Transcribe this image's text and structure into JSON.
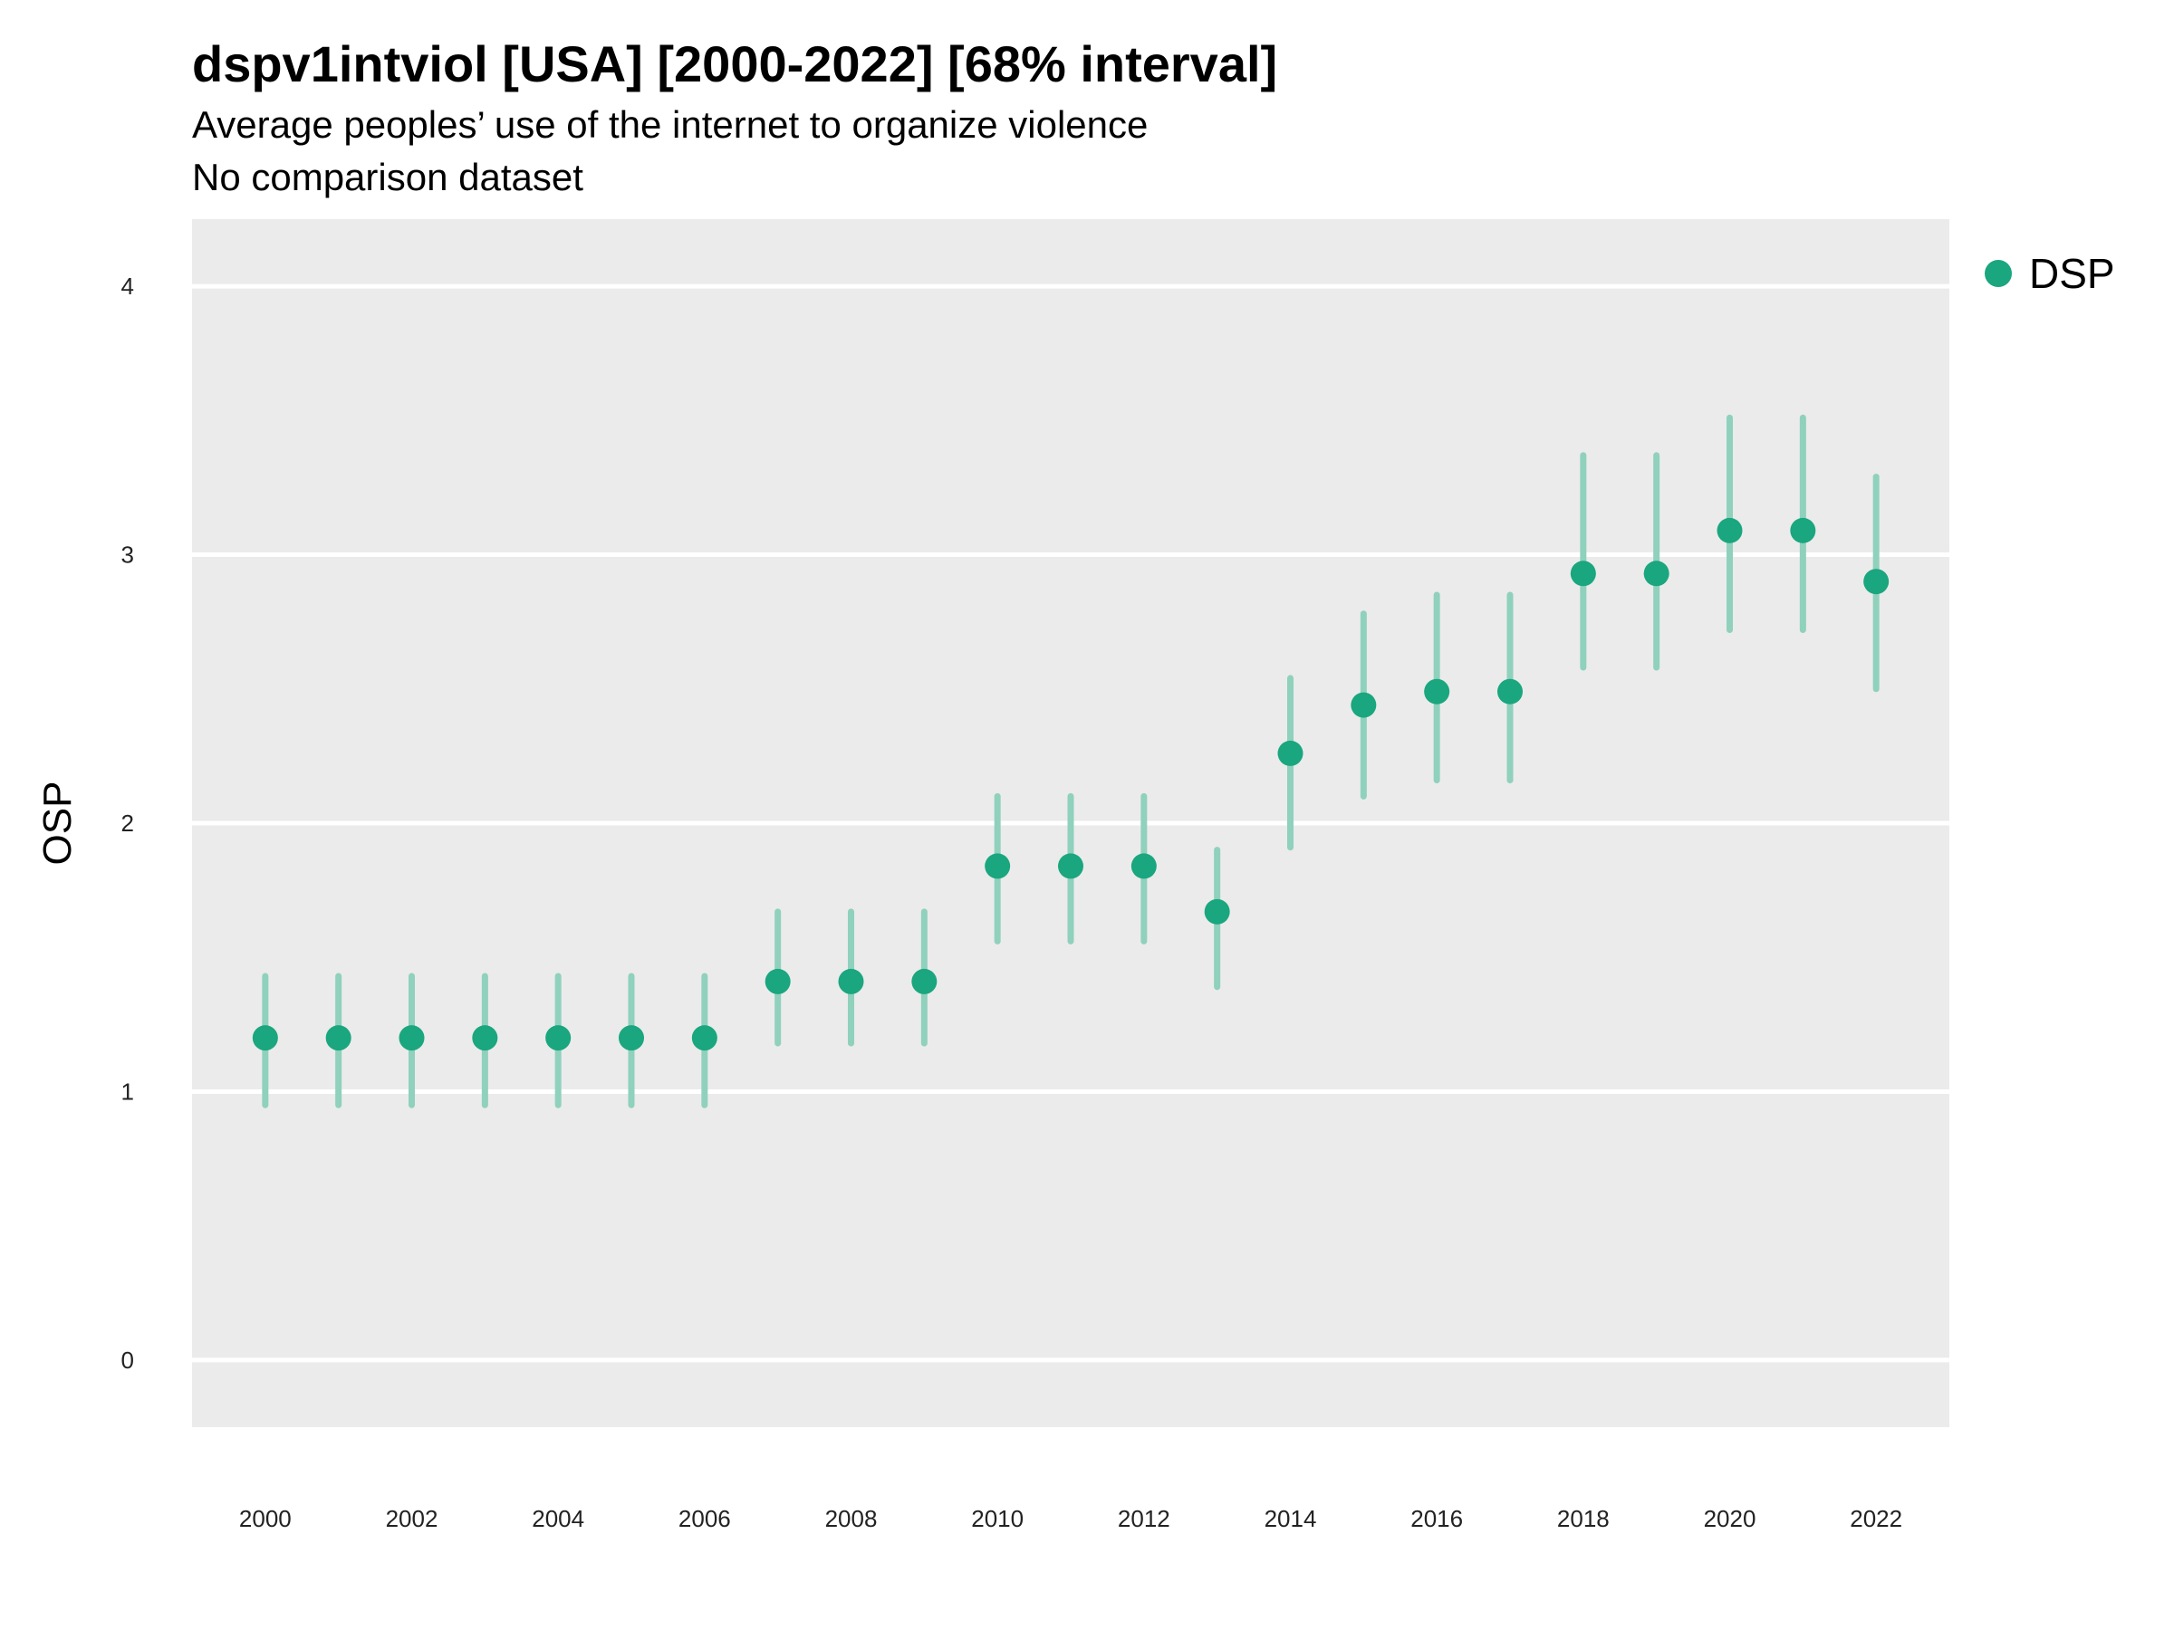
{
  "title": "dspv1intviol [USA] [2000-2022] [68% interval]",
  "subtitle": "Average peoples’ use of the internet to organize violence",
  "caption": "No comparison dataset",
  "colors": {
    "point": "#1aa67e",
    "interval": "#8fd1bc",
    "panel": "#ebebeb",
    "grid": "#ffffff"
  },
  "chart_data": {
    "type": "scatter",
    "ylabel": "OSP",
    "xlabel": "",
    "ylim": [
      -0.25,
      4.25
    ],
    "xlim": [
      1999,
      2023
    ],
    "yticks": [
      0,
      1,
      2,
      3,
      4
    ],
    "xticks": [
      2000,
      2002,
      2004,
      2006,
      2008,
      2010,
      2012,
      2014,
      2016,
      2018,
      2020,
      2022
    ],
    "grid": true,
    "legend_position": "right",
    "series": [
      {
        "name": "DSP",
        "x": [
          2000,
          2001,
          2002,
          2003,
          2004,
          2005,
          2006,
          2007,
          2008,
          2009,
          2010,
          2011,
          2012,
          2013,
          2014,
          2015,
          2016,
          2017,
          2018,
          2019,
          2020,
          2021,
          2022
        ],
        "y": [
          1.2,
          1.2,
          1.2,
          1.2,
          1.2,
          1.2,
          1.2,
          1.41,
          1.41,
          1.41,
          1.84,
          1.84,
          1.84,
          1.67,
          2.26,
          2.44,
          2.49,
          2.49,
          2.93,
          2.93,
          3.09,
          3.09,
          2.9
        ],
        "lower": [
          0.95,
          0.95,
          0.95,
          0.95,
          0.95,
          0.95,
          0.95,
          1.18,
          1.18,
          1.18,
          1.56,
          1.56,
          1.56,
          1.39,
          1.91,
          2.1,
          2.16,
          2.16,
          2.58,
          2.58,
          2.72,
          2.72,
          2.5
        ],
        "upper": [
          1.43,
          1.43,
          1.43,
          1.43,
          1.43,
          1.43,
          1.43,
          1.67,
          1.67,
          1.67,
          2.1,
          2.1,
          2.1,
          1.9,
          2.54,
          2.78,
          2.85,
          2.85,
          3.37,
          3.37,
          3.51,
          3.51,
          3.29
        ]
      }
    ]
  }
}
